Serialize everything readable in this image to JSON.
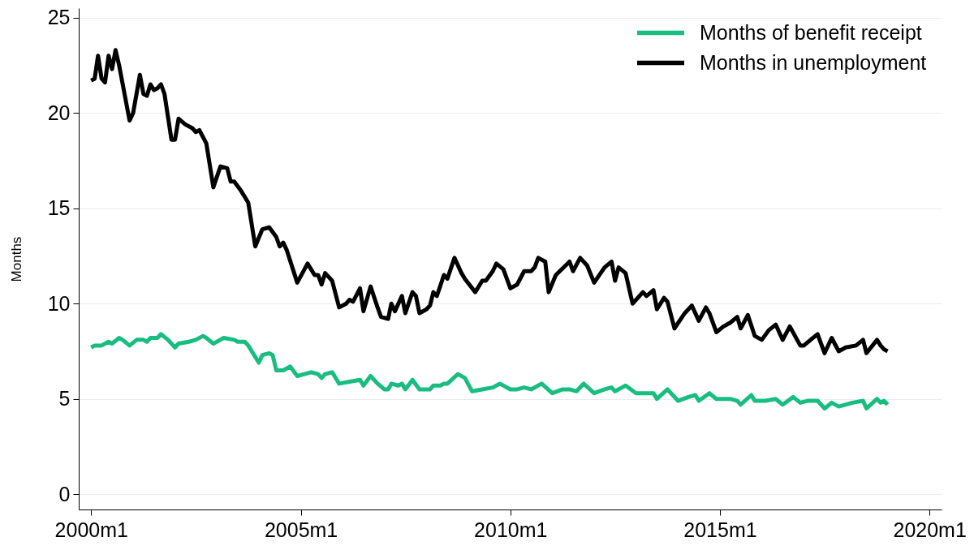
{
  "chart_data": {
    "type": "line",
    "ylabel": "Months",
    "xlim": [
      "1999-09-15",
      "2020-04-15"
    ],
    "xticks": [
      {
        "value": "2000-01",
        "label": "2000m1"
      },
      {
        "value": "2005-01",
        "label": "2005m1"
      },
      {
        "value": "2010-01",
        "label": "2010m1"
      },
      {
        "value": "2015-01",
        "label": "2015m1"
      },
      {
        "value": "2020-01",
        "label": "2020m1"
      }
    ],
    "ylim": [
      -0.8,
      25.5
    ],
    "yticks": [
      0,
      5,
      10,
      15,
      20,
      25
    ],
    "grid": "y",
    "legend": "top right",
    "series": [
      {
        "name": "Months of benefit receipt",
        "color": "#19bd80",
        "x": [
          "2000-01",
          "2000-02",
          "2000-04",
          "2000-06",
          "2000-07",
          "2000-09",
          "2000-10",
          "2000-12",
          "2001-02",
          "2001-04",
          "2001-05",
          "2001-06",
          "2001-08",
          "2001-09",
          "2001-11",
          "2002-01",
          "2002-02",
          "2002-05",
          "2002-07",
          "2002-09",
          "2002-10",
          "2002-12",
          "2003-03",
          "2003-06",
          "2003-07",
          "2003-09",
          "2003-10",
          "2004-01",
          "2004-02",
          "2004-04",
          "2004-05",
          "2004-06",
          "2004-08",
          "2004-10",
          "2004-12",
          "2005-02",
          "2005-04",
          "2005-06",
          "2005-07",
          "2005-08",
          "2005-10",
          "2005-12",
          "2006-03",
          "2006-06",
          "2006-07",
          "2006-09",
          "2006-11",
          "2007-01",
          "2007-02",
          "2007-03",
          "2007-05",
          "2007-06",
          "2007-07",
          "2007-09",
          "2007-11",
          "2008-02",
          "2008-03",
          "2008-05",
          "2008-06",
          "2008-07",
          "2008-10",
          "2008-12",
          "2009-02",
          "2009-05",
          "2009-08",
          "2009-10",
          "2010-01",
          "2010-03",
          "2010-05",
          "2010-07",
          "2010-10",
          "2011-01",
          "2011-04",
          "2011-06",
          "2011-08",
          "2011-10",
          "2012-01",
          "2012-04",
          "2012-06",
          "2012-07",
          "2012-10",
          "2013-01",
          "2013-03",
          "2013-06",
          "2013-07",
          "2013-10",
          "2014-01",
          "2014-04",
          "2014-06",
          "2014-07",
          "2014-10",
          "2014-12",
          "2015-01",
          "2015-04",
          "2015-06",
          "2015-07",
          "2015-10",
          "2015-11",
          "2016-02",
          "2016-05",
          "2016-07",
          "2016-10",
          "2016-12",
          "2017-02",
          "2017-05",
          "2017-07",
          "2017-09",
          "2017-11",
          "2018-03",
          "2018-06",
          "2018-07",
          "2018-10",
          "2018-11",
          "2018-12",
          "2019-01"
        ],
        "values": [
          7.7,
          7.8,
          7.8,
          8.0,
          7.9,
          8.2,
          8.1,
          7.8,
          8.1,
          8.1,
          8.0,
          8.2,
          8.2,
          8.4,
          8.1,
          7.7,
          7.9,
          8.0,
          8.1,
          8.3,
          8.2,
          7.9,
          8.2,
          8.1,
          8.0,
          8.0,
          7.8,
          6.9,
          7.3,
          7.4,
          7.3,
          6.5,
          6.5,
          6.7,
          6.2,
          6.3,
          6.4,
          6.3,
          6.1,
          6.3,
          6.4,
          5.8,
          5.9,
          6.0,
          5.7,
          6.2,
          5.8,
          5.5,
          5.5,
          5.8,
          5.7,
          5.8,
          5.5,
          6.0,
          5.5,
          5.5,
          5.7,
          5.7,
          5.8,
          5.8,
          6.3,
          6.1,
          5.4,
          5.5,
          5.6,
          5.8,
          5.5,
          5.5,
          5.6,
          5.5,
          5.8,
          5.3,
          5.5,
          5.5,
          5.4,
          5.8,
          5.3,
          5.5,
          5.6,
          5.4,
          5.7,
          5.3,
          5.3,
          5.3,
          5.0,
          5.5,
          4.9,
          5.1,
          5.2,
          4.9,
          5.3,
          5.0,
          5.0,
          5.0,
          4.9,
          4.7,
          5.2,
          4.9,
          4.9,
          5.0,
          4.7,
          5.1,
          4.8,
          4.9,
          4.9,
          4.5,
          4.8,
          4.6,
          4.8,
          4.9,
          4.5,
          5.0,
          4.8,
          4.9,
          4.7
        ]
      },
      {
        "name": "Months in unemployment",
        "color": "#000000",
        "x": [
          "2000-01",
          "2000-02",
          "2000-03",
          "2000-04",
          "2000-05",
          "2000-06",
          "2000-07",
          "2000-08",
          "2000-09",
          "2000-12",
          "2001-01",
          "2001-03",
          "2001-04",
          "2001-05",
          "2001-06",
          "2001-07",
          "2001-08",
          "2001-09",
          "2001-10",
          "2001-12",
          "2002-01",
          "2002-02",
          "2002-04",
          "2002-06",
          "2002-07",
          "2002-08",
          "2002-10",
          "2002-12",
          "2003-02",
          "2003-04",
          "2003-05",
          "2003-06",
          "2003-08",
          "2003-10",
          "2003-12",
          "2004-02",
          "2004-04",
          "2004-06",
          "2004-07",
          "2004-08",
          "2004-09",
          "2004-12",
          "2005-03",
          "2005-05",
          "2005-06",
          "2005-07",
          "2005-08",
          "2005-10",
          "2005-12",
          "2006-02",
          "2006-03",
          "2006-04",
          "2006-06",
          "2006-07",
          "2006-09",
          "2006-11",
          "2006-12",
          "2007-02",
          "2007-03",
          "2007-04",
          "2007-06",
          "2007-07",
          "2007-09",
          "2007-10",
          "2007-11",
          "2008-01",
          "2008-02",
          "2008-03",
          "2008-04",
          "2008-06",
          "2008-07",
          "2008-09",
          "2008-11",
          "2008-12",
          "2009-03",
          "2009-05",
          "2009-06",
          "2009-08",
          "2009-09",
          "2009-11",
          "2010-01",
          "2010-03",
          "2010-05",
          "2010-07",
          "2010-08",
          "2010-09",
          "2010-11",
          "2010-12",
          "2011-02",
          "2011-06",
          "2011-07",
          "2011-09",
          "2011-11",
          "2012-01",
          "2012-04",
          "2012-06",
          "2012-07",
          "2012-08",
          "2012-10",
          "2012-12",
          "2013-03",
          "2013-04",
          "2013-06",
          "2013-07",
          "2013-09",
          "2013-10",
          "2013-12",
          "2014-03",
          "2014-05",
          "2014-07",
          "2014-09",
          "2014-10",
          "2014-12",
          "2015-02",
          "2015-04",
          "2015-06",
          "2015-07",
          "2015-09",
          "2015-11",
          "2016-01",
          "2016-03",
          "2016-05",
          "2016-07",
          "2016-09",
          "2016-12",
          "2017-01",
          "2017-03",
          "2017-05",
          "2017-07",
          "2017-09",
          "2017-11",
          "2018-01",
          "2018-04",
          "2018-06",
          "2018-07",
          "2018-10",
          "2018-11",
          "2018-12",
          "2019-01"
        ],
        "values": [
          21.7,
          21.8,
          23.0,
          21.8,
          21.6,
          23.0,
          22.3,
          23.3,
          22.5,
          19.6,
          20.0,
          22.0,
          21.0,
          20.9,
          21.5,
          21.2,
          21.3,
          21.5,
          21.0,
          18.6,
          18.6,
          19.7,
          19.4,
          19.2,
          19.0,
          19.1,
          18.4,
          16.1,
          17.2,
          17.1,
          16.4,
          16.4,
          15.9,
          15.3,
          13.0,
          13.9,
          14.0,
          13.5,
          13.0,
          13.2,
          12.8,
          11.1,
          12.1,
          11.5,
          11.5,
          11.0,
          11.6,
          11.2,
          9.8,
          10.0,
          10.2,
          10.1,
          10.8,
          9.6,
          10.9,
          9.8,
          9.3,
          9.2,
          10.0,
          9.6,
          10.4,
          9.5,
          10.6,
          10.4,
          9.5,
          9.7,
          9.9,
          10.6,
          10.4,
          11.5,
          11.3,
          12.4,
          11.6,
          11.3,
          10.6,
          11.2,
          11.2,
          11.7,
          12.1,
          11.8,
          10.8,
          11.0,
          11.7,
          11.7,
          11.9,
          12.4,
          12.2,
          10.6,
          11.5,
          12.2,
          11.7,
          12.4,
          12.0,
          11.1,
          11.9,
          12.2,
          11.2,
          11.9,
          11.6,
          10.0,
          10.6,
          10.4,
          10.7,
          9.7,
          10.3,
          10.1,
          8.7,
          9.5,
          9.9,
          9.1,
          9.8,
          9.5,
          8.5,
          8.8,
          9.0,
          9.3,
          8.7,
          9.4,
          8.3,
          8.1,
          8.6,
          8.9,
          8.1,
          8.8,
          7.8,
          7.8,
          8.1,
          8.4,
          7.4,
          8.2,
          7.5,
          7.7,
          7.8,
          8.1,
          7.4,
          8.1,
          7.8,
          7.6,
          7.5
        ]
      }
    ]
  }
}
